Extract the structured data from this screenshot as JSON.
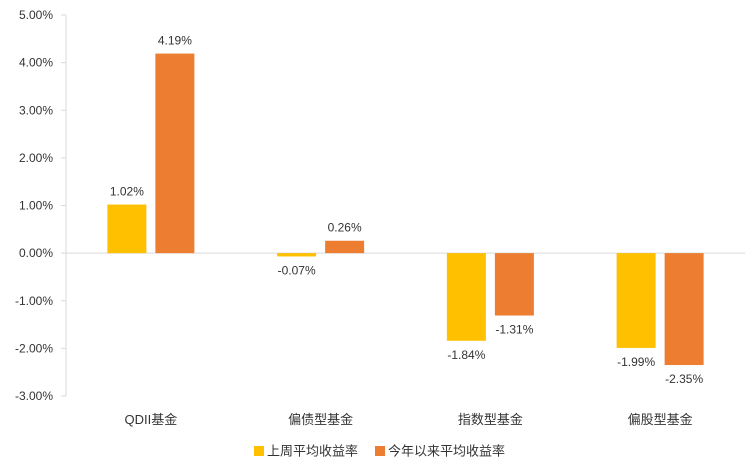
{
  "chart_data": {
    "type": "bar",
    "title": "",
    "xlabel": "",
    "ylabel": "",
    "categories": [
      "QDII基金",
      "偏债型基金",
      "指数型基金",
      "偏股型基金"
    ],
    "series": [
      {
        "name": "上周平均收益率",
        "color": "#FFC000",
        "values": [
          1.02,
          -0.07,
          -1.84,
          -1.99
        ],
        "labels": [
          "1.02%",
          "-0.07%",
          "-1.84%",
          "-1.99%"
        ]
      },
      {
        "name": "今年以来平均收益率",
        "color": "#ED7D31",
        "values": [
          4.19,
          0.26,
          -1.31,
          -2.35
        ],
        "labels": [
          "4.19%",
          "0.26%",
          "-1.31%",
          "-2.35%"
        ]
      }
    ],
    "ylim": [
      -3.0,
      5.0
    ],
    "yticks": [
      5.0,
      4.0,
      3.0,
      2.0,
      1.0,
      0.0,
      -1.0,
      -2.0,
      -3.0
    ],
    "ytick_labels": [
      "5.00%",
      "4.00%",
      "3.00%",
      "2.00%",
      "1.00%",
      "0.00%",
      "-1.00%",
      "-2.00%",
      "-3.00%"
    ],
    "grid": false,
    "legend_position": "bottom-center",
    "axis_color": "#D9D9D9"
  }
}
